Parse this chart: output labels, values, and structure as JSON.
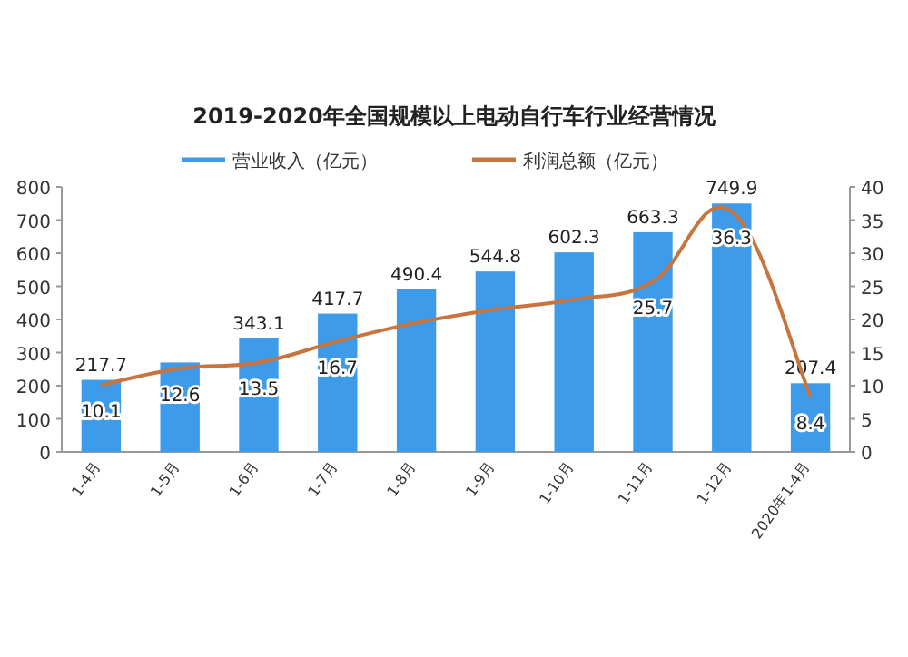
{
  "chart_data": {
    "type": "bar",
    "title": "2019-2020年全国规模以上电动自行车行业经营情况",
    "categories": [
      "1-4月",
      "1-5月",
      "1-6月",
      "1-7月",
      "1-8月",
      "1-9月",
      "1-10月",
      "1-11月",
      "1-12月",
      "2020年1-4月"
    ],
    "series": [
      {
        "name": "营业收入（亿元）",
        "color": "#3d9be9",
        "values": [
          217.7,
          270,
          343.1,
          417.7,
          490.4,
          544.8,
          602.3,
          663.3,
          749.9,
          207.4
        ],
        "value_labels": [
          "217.7",
          null,
          "343.1",
          "417.7",
          "490.4",
          "544.8",
          "602.3",
          "663.3",
          "749.9",
          "207.4"
        ]
      },
      {
        "name": "利润总额（亿元）",
        "type": "line",
        "axis": "y2",
        "color": "#c8743f",
        "values": [
          10.1,
          12.6,
          13.5,
          16.7,
          19.5,
          21.5,
          23.0,
          25.7,
          36.3,
          8.4
        ],
        "value_labels": [
          "10.1",
          "12.6",
          "13.5",
          "16.7",
          null,
          null,
          null,
          "25.7",
          "36.3",
          "8.4"
        ]
      }
    ],
    "ylim": [
      0,
      800
    ],
    "yticks": [
      0,
      100,
      200,
      300,
      400,
      500,
      600,
      700,
      800
    ],
    "y2lim": [
      0,
      40
    ],
    "y2ticks": [
      0,
      5,
      10,
      15,
      20,
      25,
      30,
      35,
      40
    ],
    "legend": "top",
    "grid": false
  }
}
